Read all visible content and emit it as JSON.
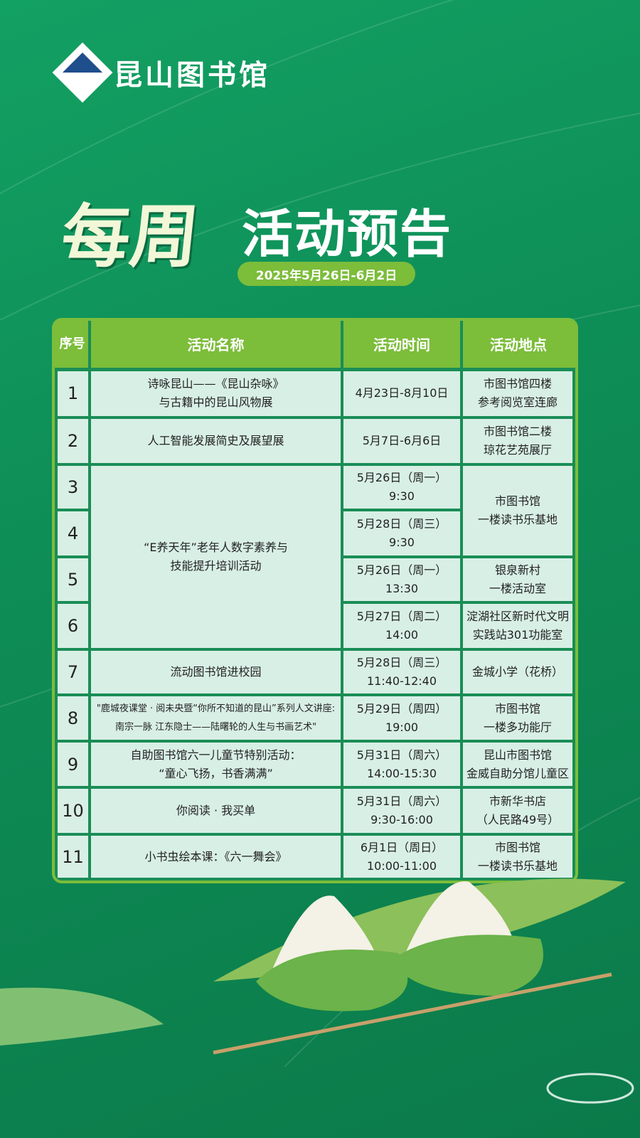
{
  "logo": {
    "text": "昆山图书馆"
  },
  "title": {
    "main": "每周",
    "sub": "活动预告",
    "date_range": "2025年5月26日-6月2日"
  },
  "table": {
    "headers": [
      "序号",
      "活动名称",
      "活动时间",
      "活动地点"
    ],
    "rows": [
      {
        "no": "1",
        "name": [
          "诗咏昆山——《昆山杂咏》",
          "与古籍中的昆山风物展"
        ],
        "time": [
          "4月23日-8月10日"
        ],
        "place": [
          "市图书馆四楼",
          "参考阅览室连廊"
        ]
      },
      {
        "no": "2",
        "name": [
          "人工智能发展简史及展望展"
        ],
        "time": [
          "5月7日-6月6日"
        ],
        "place": [
          "市图书馆二楼",
          "琼花艺苑展厅"
        ]
      },
      {
        "no": "3",
        "name": [
          "“E养天年”老年人数字素养与",
          "技能提升培训活动"
        ],
        "time": [
          "5月26日（周一）",
          "9:30"
        ],
        "place": [
          "市图书馆",
          "一楼读书乐基地"
        ]
      },
      {
        "no": "4",
        "time": [
          "5月28日（周三）",
          "9:30"
        ]
      },
      {
        "no": "5",
        "time": [
          "5月26日（周一）",
          "13:30"
        ],
        "place": [
          "银泉新村",
          "一楼活动室"
        ]
      },
      {
        "no": "6",
        "time": [
          "5月27日（周二）",
          "14:00"
        ],
        "place": [
          "淀湖社区新时代文明",
          "实践站301功能室"
        ]
      },
      {
        "no": "7",
        "name": [
          "流动图书馆进校园"
        ],
        "time": [
          "5月28日（周三）",
          "11:40-12:40"
        ],
        "place": [
          "金城小学（花桥）"
        ]
      },
      {
        "no": "8",
        "name": [
          "\"鹿城夜课堂 · 阅未央暨“你所不知道的昆山”系列人文讲座:",
          "南宗一脉 江东隐士——陆曙轮的人生与书画艺术\""
        ],
        "time": [
          "5月29日（周四）",
          "19:00"
        ],
        "place": [
          "市图书馆",
          "一楼多功能厅"
        ]
      },
      {
        "no": "9",
        "name": [
          "自助图书馆六一儿童节特别活动：",
          "“童心飞扬，书香满满”"
        ],
        "time": [
          "5月31日（周六）",
          "14:00-15:30"
        ],
        "place": [
          "昆山市图书馆",
          "金威自助分馆儿童区"
        ]
      },
      {
        "no": "10",
        "name": [
          "你阅读 · 我买单"
        ],
        "time": [
          "5月31日（周六）",
          "9:30-16:00"
        ],
        "place": [
          "市新华书店",
          "（人民路49号）"
        ]
      },
      {
        "no": "11",
        "name": [
          "小书虫绘本课：《六一舞会》"
        ],
        "time": [
          "6月1日（周日）",
          "10:00-11:00"
        ],
        "place": [
          "市图书馆",
          "一楼读书乐基地"
        ]
      }
    ]
  },
  "colors": {
    "background": "#0e8e57",
    "accent": "#7cbd3a",
    "cell": "#d8efe6"
  }
}
